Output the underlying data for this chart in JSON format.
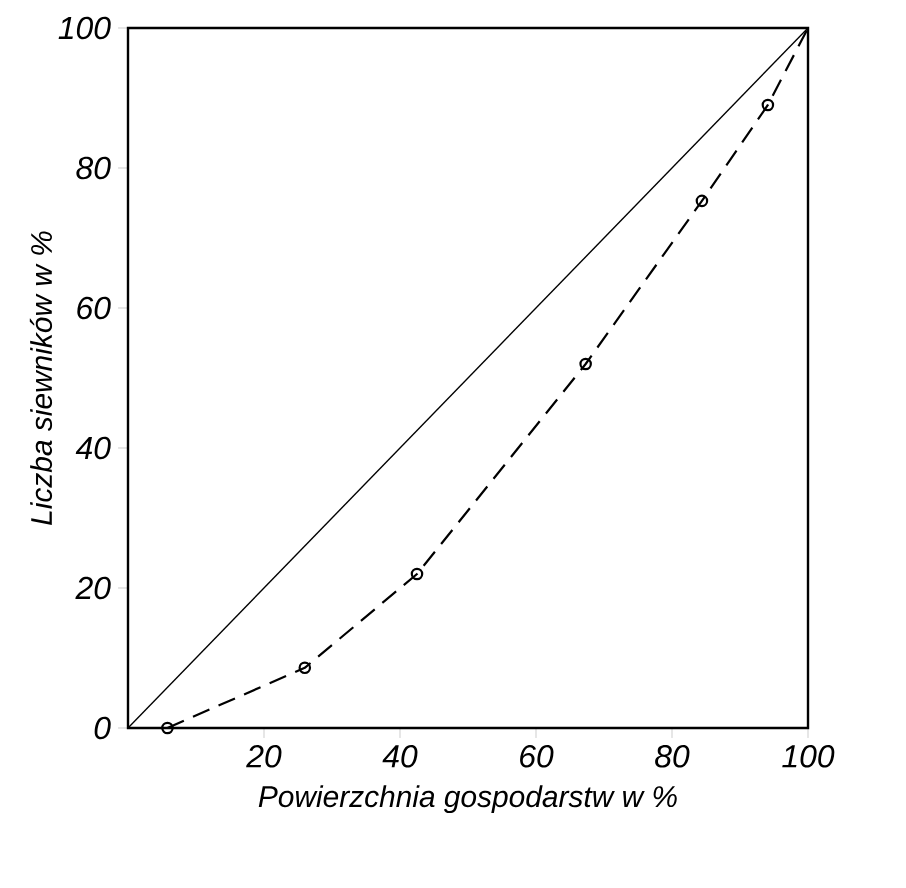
{
  "chart_data": {
    "type": "line",
    "xlabel": "Powierzchnia gospodarstw w %",
    "ylabel": "Liczba siewników w %",
    "xlim": [
      0,
      100
    ],
    "ylim": [
      0,
      100
    ],
    "xticks": [
      20,
      40,
      60,
      80,
      100
    ],
    "yticks": [
      0,
      20,
      40,
      60,
      80,
      100
    ],
    "grid": false,
    "series": [
      {
        "color": "#000000",
        "line_style": "solid",
        "marker": "none",
        "x": [
          0,
          100
        ],
        "values": [
          0,
          100
        ]
      },
      {
        "color": "#000000",
        "line_style": "dashed",
        "marker": "none",
        "x": [
          5.8,
          26,
          42.5,
          67.3,
          84.4,
          94.1,
          100
        ],
        "values": [
          0,
          8.6,
          22,
          52,
          75.3,
          89,
          100
        ]
      },
      {
        "type": "scatter",
        "color": "#000000",
        "marker": "circle",
        "x": [
          5.8,
          26,
          42.5,
          67.3,
          84.4,
          94.1
        ],
        "values": [
          0,
          8.6,
          22,
          52,
          75.3,
          89
        ]
      }
    ]
  }
}
